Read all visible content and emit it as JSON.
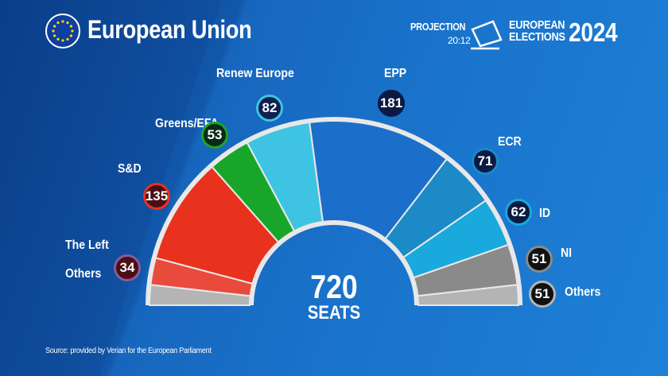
{
  "header": {
    "title": "European Union",
    "projection_label": "PROJECTION",
    "time": "20:12",
    "elections_line1": "EUROPEAN",
    "elections_line2": "ELECTIONS",
    "year": "2024"
  },
  "source": "Source: provided by Verian for the European Parliament",
  "chart_data": {
    "type": "pie",
    "subtype": "parliament-hemicycle",
    "total": "720",
    "total_label": "SEATS",
    "series": [
      {
        "name": "Others",
        "value": null,
        "color": "#b4b4b4"
      },
      {
        "name": "The Left",
        "value": 34,
        "color": "#e84a3c",
        "badge": "#4a0f16"
      },
      {
        "name": "S&D",
        "value": 135,
        "color": "#e8321e",
        "badge": "#4a0f16"
      },
      {
        "name": "Greens/EFA",
        "value": 53,
        "color": "#18a62a",
        "badge": "#0b2a14"
      },
      {
        "name": "Renew Europe",
        "value": 82,
        "color": "#3ec4e2",
        "badge": "#0e2050"
      },
      {
        "name": "EPP",
        "value": 181,
        "color": "#1b6fca",
        "badge": "#0a1a44"
      },
      {
        "name": "ECR",
        "value": 71,
        "color": "#1b8ac6",
        "badge": "#0a1a44"
      },
      {
        "name": "ID",
        "value": 62,
        "color": "#19a9dc",
        "badge": "#0a1a44"
      },
      {
        "name": "NI",
        "value": 51,
        "color": "#8a8a8a",
        "badge": "#111111"
      },
      {
        "name": "Others",
        "value": 51,
        "color": "#b4b4b4",
        "badge": "#111111"
      }
    ]
  }
}
